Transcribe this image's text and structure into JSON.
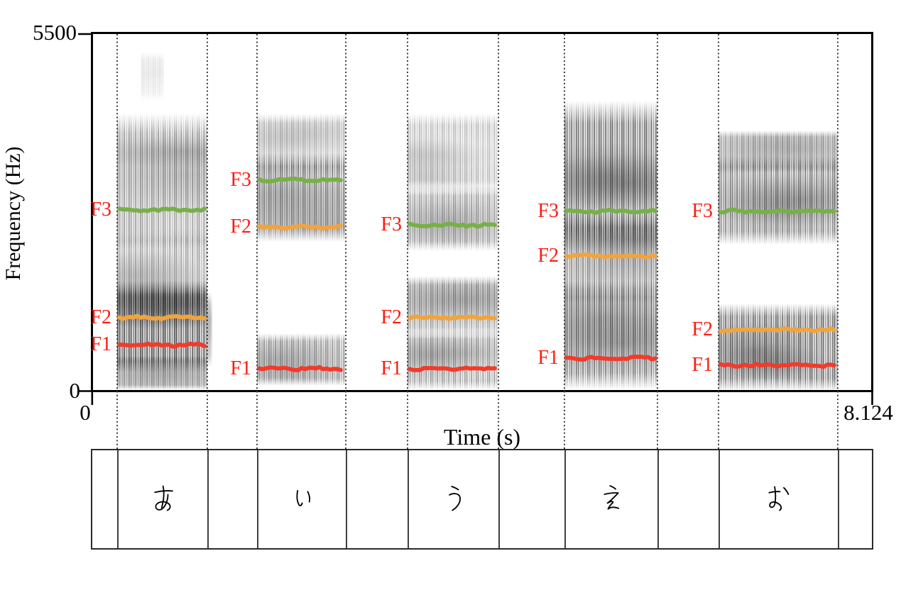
{
  "chart_data": {
    "type": "spectrogram",
    "ylabel": "Frequency (Hz)",
    "xlabel": "Time (s)",
    "y_axis": {
      "min": 0,
      "max": 5500,
      "min_label": "0",
      "max_label": "5500"
    },
    "x_axis": {
      "min": 0,
      "max": 8.124,
      "min_label": "0",
      "max_label": "8.124"
    },
    "formant_names": [
      "F1",
      "F2",
      "F3"
    ],
    "colors": {
      "F1": "#f23b2b",
      "F2": "#f2a43c",
      "F3": "#78b048",
      "formant_label": "#fb1b10",
      "boundary": "#3c3c3c"
    },
    "segments": [
      {
        "vowel": "あ",
        "t_start": 0.273,
        "t_end": 1.209,
        "formants": {
          "F1": 720,
          "F2": 1140,
          "F3": 2780
        },
        "energy_bands": [
          [
            2200,
            4250,
            0.45
          ],
          [
            1250,
            2500,
            0.4
          ],
          [
            300,
            1700,
            0.82
          ],
          [
            30,
            550,
            0.42
          ],
          [
            4450,
            5200,
            0.09,
            0.27,
            0.52
          ],
          [
            380,
            1540,
            0.3,
            1.0,
            1.055
          ]
        ]
      },
      {
        "vowel": "い",
        "t_start": 1.725,
        "t_end": 2.647,
        "formants": {
          "F1": 360,
          "F2": 2520,
          "F3": 3240
        },
        "energy_bands": [
          [
            3300,
            4250,
            0.28
          ],
          [
            2300,
            3650,
            0.52
          ],
          [
            100,
            900,
            0.46
          ]
        ]
      },
      {
        "vowel": "う",
        "t_start": 3.288,
        "t_end": 4.232,
        "formants": {
          "F1": 360,
          "F2": 1140,
          "F3": 2550
        },
        "energy_bands": [
          [
            3050,
            4250,
            0.3
          ],
          [
            2150,
            3150,
            0.4
          ],
          [
            850,
            1780,
            0.44
          ],
          [
            30,
            950,
            0.46
          ]
        ]
      },
      {
        "vowel": "え",
        "t_start": 4.917,
        "t_end": 5.883,
        "formants": {
          "F1": 520,
          "F2": 2080,
          "F3": 2760
        },
        "energy_bands": [
          [
            2150,
            4450,
            0.66
          ],
          [
            1350,
            2750,
            0.5
          ],
          [
            40,
            1700,
            0.62
          ]
        ]
      },
      {
        "vowel": "お",
        "t_start": 6.517,
        "t_end": 7.755,
        "formants": {
          "F1": 410,
          "F2": 950,
          "F3": 2760
        },
        "energy_bands": [
          [
            3350,
            4000,
            0.38
          ],
          [
            2250,
            3600,
            0.56
          ],
          [
            10,
            1350,
            0.68
          ]
        ]
      }
    ]
  },
  "tier": {
    "labels": [
      "あ",
      "い",
      "う",
      "え",
      "お"
    ]
  }
}
